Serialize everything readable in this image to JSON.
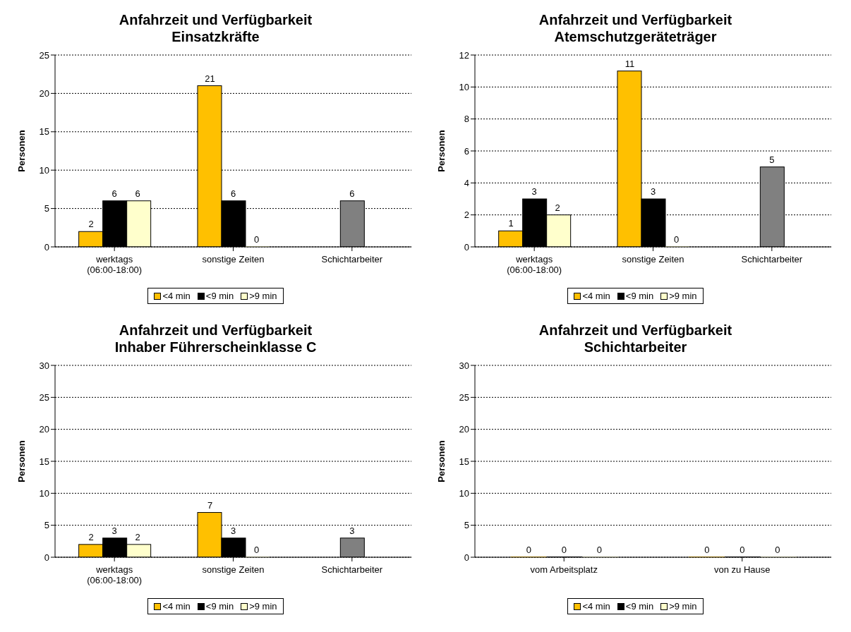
{
  "chart_data": [
    {
      "type": "bar",
      "title": "Anfahrzeit und Verfügbarkeit",
      "subtitle": "Einsatzkräfte",
      "ylabel": "Personen",
      "categories": [
        "werktags (06:00-18:00)",
        "sonstige Zeiten",
        "Schichtarbeiter"
      ],
      "series": [
        {
          "name": "<4 min",
          "color": "#ffc000",
          "values": [
            2,
            21,
            null
          ]
        },
        {
          "name": "<9 min",
          "color": "#000000",
          "colors": [
            "#000000",
            "#000000",
            "#808080"
          ],
          "values": [
            6,
            6,
            6
          ]
        },
        {
          "name": ">9 min",
          "color": "#ffffcc",
          "values": [
            6,
            0,
            null
          ]
        }
      ],
      "ylim": [
        0,
        25
      ],
      "yticks": [
        0,
        5,
        10,
        15,
        20,
        25
      ],
      "grid": "y",
      "legend": "bottom",
      "data_labels": true
    },
    {
      "type": "bar",
      "title": "Anfahrzeit und Verfügbarkeit",
      "subtitle": "Atemschutzgeräteträger",
      "ylabel": "Personen",
      "categories": [
        "werktags (06:00-18:00)",
        "sonstige Zeiten",
        "Schichtarbeiter"
      ],
      "series": [
        {
          "name": "<4 min",
          "color": "#ffc000",
          "values": [
            1,
            11,
            null
          ]
        },
        {
          "name": "<9 min",
          "color": "#000000",
          "colors": [
            "#000000",
            "#000000",
            "#808080"
          ],
          "values": [
            3,
            3,
            5
          ]
        },
        {
          "name": ">9 min",
          "color": "#ffffcc",
          "values": [
            2,
            0,
            null
          ]
        }
      ],
      "ylim": [
        0,
        12
      ],
      "yticks": [
        0,
        2,
        4,
        6,
        8,
        10,
        12
      ],
      "grid": "y",
      "legend": "bottom",
      "data_labels": true
    },
    {
      "type": "bar",
      "title": "Anfahrzeit und Verfügbarkeit",
      "subtitle": "Inhaber Führerscheinklasse C",
      "ylabel": "Personen",
      "categories": [
        "werktags (06:00-18:00)",
        "sonstige Zeiten",
        "Schichtarbeiter"
      ],
      "series": [
        {
          "name": "<4 min",
          "color": "#ffc000",
          "values": [
            2,
            7,
            null
          ]
        },
        {
          "name": "<9 min",
          "color": "#000000",
          "colors": [
            "#000000",
            "#000000",
            "#808080"
          ],
          "values": [
            3,
            3,
            3
          ]
        },
        {
          "name": ">9 min",
          "color": "#ffffcc",
          "values": [
            2,
            0,
            null
          ]
        }
      ],
      "ylim": [
        0,
        30
      ],
      "yticks": [
        0,
        5,
        10,
        15,
        20,
        25,
        30
      ],
      "grid": "y",
      "legend": "bottom",
      "data_labels": true
    },
    {
      "type": "bar",
      "title": "Anfahrzeit und Verfügbarkeit",
      "subtitle": "Schichtarbeiter",
      "ylabel": "Personen",
      "categories": [
        "vom Arbeitsplatz",
        "von zu Hause"
      ],
      "series": [
        {
          "name": "<4 min",
          "color": "#ffc000",
          "values": [
            0,
            0
          ]
        },
        {
          "name": "<9 min",
          "color": "#000000",
          "values": [
            0,
            0
          ]
        },
        {
          "name": ">9 min",
          "color": "#ffffcc",
          "values": [
            0,
            0
          ]
        }
      ],
      "ylim": [
        0,
        30
      ],
      "yticks": [
        0,
        5,
        10,
        15,
        20,
        25,
        30
      ],
      "grid": "y",
      "legend": "bottom",
      "data_labels": true
    }
  ]
}
